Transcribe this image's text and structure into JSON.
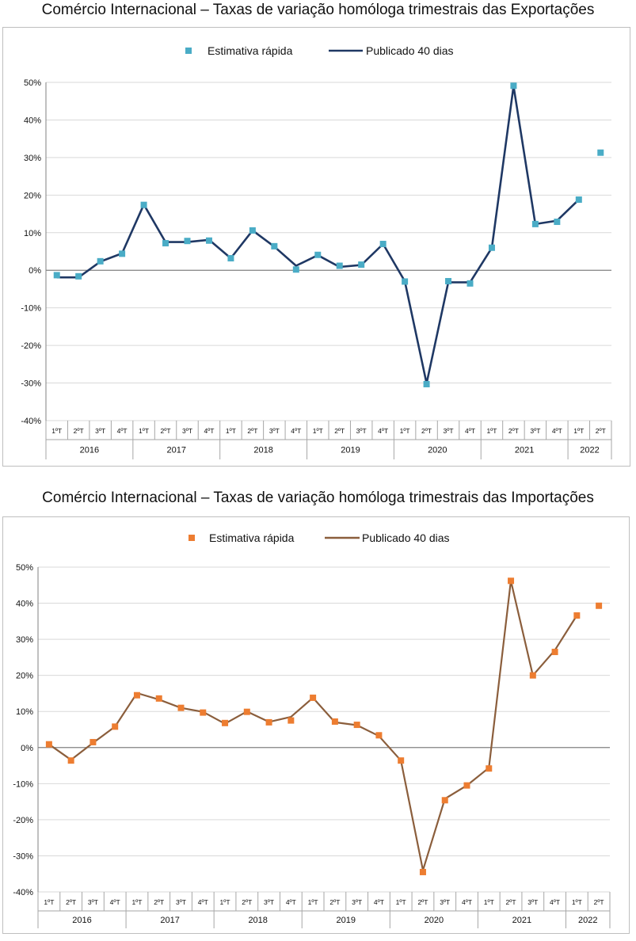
{
  "chart_data": [
    {
      "type": "line",
      "title": "Comércio Internacional – Taxas de variação homóloga trimestrais das Exportações",
      "ylim": [
        -40,
        50
      ],
      "yticks": [
        "50%",
        "40%",
        "30%",
        "20%",
        "10%",
        "0%",
        "-10%",
        "-20%",
        "-30%",
        "-40%"
      ],
      "categories": [
        "1ºT",
        "2ºT",
        "3ºT",
        "4ºT",
        "1ºT",
        "2ºT",
        "3ºT",
        "4ºT",
        "1ºT",
        "2ºT",
        "3ºT",
        "4ºT",
        "1ºT",
        "2ºT",
        "3ºT",
        "4ºT",
        "1ºT",
        "2ºT",
        "3ºT",
        "4ºT",
        "1ºT",
        "2ºT",
        "3ºT",
        "4ºT",
        "1ºT",
        "2ºT"
      ],
      "years": [
        "2016",
        "2017",
        "2018",
        "2019",
        "2020",
        "2021",
        "2022"
      ],
      "legend": [
        "Estimativa rápida",
        "Publicado 40 dias"
      ],
      "grid": "horizontal",
      "legend_position": "top",
      "colors": {
        "estimate": "#4aacc6",
        "published": "#1f3864"
      },
      "series": [
        {
          "name": "Estimativa rápida",
          "kind": "markers",
          "values": [
            -1.3,
            -1.6,
            2.4,
            4.4,
            17.4,
            7.2,
            7.8,
            7.9,
            3.2,
            10.6,
            6.4,
            0.2,
            4.1,
            1.2,
            1.5,
            7.0,
            -3.0,
            -30.3,
            -2.9,
            -3.5,
            6.0,
            49.1,
            12.3,
            12.9,
            18.8,
            31.3
          ]
        },
        {
          "name": "Publicado 40 dias",
          "kind": "line",
          "values": [
            -1.9,
            -1.9,
            2.3,
            4.5,
            17.5,
            7.5,
            7.5,
            8.1,
            3.2,
            10.6,
            6.3,
            1.2,
            4.0,
            0.9,
            1.4,
            7.0,
            -2.9,
            -30.1,
            -3.2,
            -3.2,
            6.0,
            49.0,
            12.3,
            13.2,
            18.8,
            null
          ]
        }
      ]
    },
    {
      "type": "line",
      "title": "Comércio Internacional – Taxas de variação homóloga trimestrais das Importações",
      "ylim": [
        -40,
        50
      ],
      "yticks": [
        "50%",
        "40%",
        "30%",
        "20%",
        "10%",
        "0%",
        "-10%",
        "-20%",
        "-30%",
        "-40%"
      ],
      "categories": [
        "1ºT",
        "2ºT",
        "3ºT",
        "4ºT",
        "1ºT",
        "2ºT",
        "3ºT",
        "4ºT",
        "1ºT",
        "2ºT",
        "3ºT",
        "4ºT",
        "1ºT",
        "2ºT",
        "3ºT",
        "4ºT",
        "1ºT",
        "2ºT",
        "3ºT",
        "4ºT",
        "1ºT",
        "2ºT",
        "3ºT",
        "4ºT",
        "1ºT",
        "2ºT"
      ],
      "years": [
        "2016",
        "2017",
        "2018",
        "2019",
        "2020",
        "2021",
        "2022"
      ],
      "legend": [
        "Estimativa rápida",
        "Publicado 40 dias"
      ],
      "grid": "horizontal",
      "legend_position": "top",
      "colors": {
        "estimate": "#ed7d31",
        "published": "#8b5e3c"
      },
      "series": [
        {
          "name": "Estimativa rápida",
          "kind": "markers",
          "values": [
            0.9,
            -3.6,
            1.5,
            5.8,
            14.5,
            13.6,
            11.0,
            9.7,
            6.8,
            9.9,
            7.0,
            7.5,
            13.8,
            7.2,
            6.3,
            3.4,
            -3.6,
            -34.5,
            -14.6,
            -10.5,
            -5.8,
            46.2,
            20.0,
            26.5,
            36.6,
            39.3
          ]
        },
        {
          "name": "Publicado 40 dias",
          "kind": "line",
          "values": [
            0.9,
            -3.4,
            1.3,
            5.8,
            15.1,
            13.3,
            11.0,
            9.9,
            6.6,
            10.0,
            7.1,
            8.5,
            13.8,
            7.0,
            6.2,
            3.2,
            -3.6,
            -34.0,
            -14.2,
            -10.5,
            -5.6,
            46.2,
            20.0,
            27.0,
            36.6,
            null
          ]
        }
      ]
    }
  ]
}
